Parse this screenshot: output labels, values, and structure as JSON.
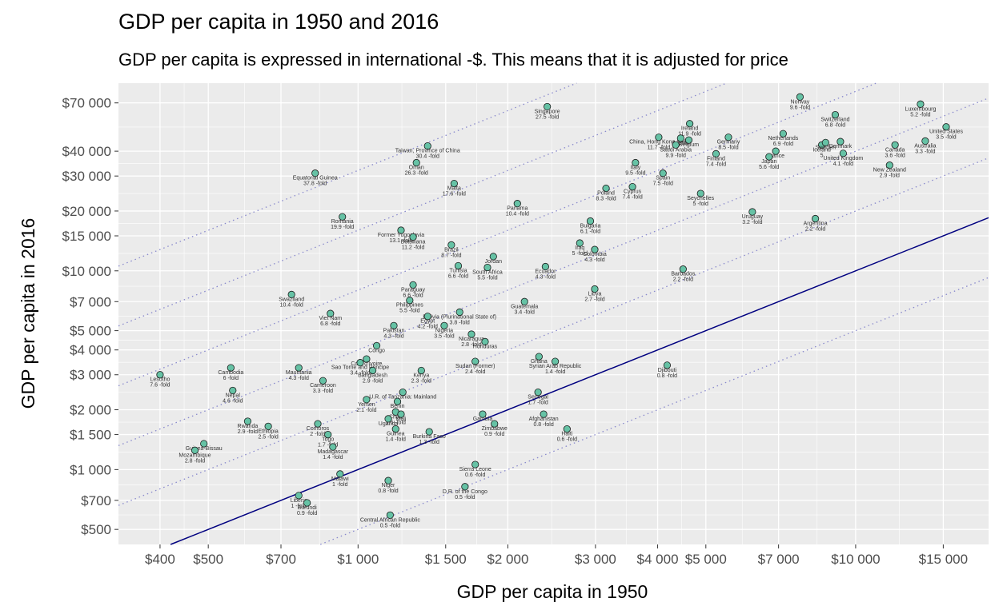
{
  "title": "GDP per capita in 1950 and 2016",
  "subtitle": "GDP per capita is expressed in international -$. This means that it is adjusted for price",
  "colors": {
    "panel": "#ebebeb",
    "grid": "#ffffff",
    "point_fill": "#66c2a5",
    "point_stroke": "#1a1a1a",
    "line": "#000080",
    "dotted": "#8888cc"
  },
  "chart_data": {
    "type": "scatter",
    "x_scale": "log",
    "y_scale": "log",
    "xlabel": "GDP per capita in 1950",
    "ylabel": "GDP per capita in 2016",
    "xlim": [
      330,
      18500
    ],
    "ylim": [
      420,
      88000
    ],
    "grid": true,
    "x_ticks": [
      {
        "value": 400,
        "label": "$400"
      },
      {
        "value": 500,
        "label": "$500"
      },
      {
        "value": 700,
        "label": "$700"
      },
      {
        "value": 1000,
        "label": "$1 000"
      },
      {
        "value": 1500,
        "label": "$1 500"
      },
      {
        "value": 2000,
        "label": "$2 000"
      },
      {
        "value": 3000,
        "label": "$3 000"
      },
      {
        "value": 4000,
        "label": "$4 000"
      },
      {
        "value": 5000,
        "label": "$5 000"
      },
      {
        "value": 7000,
        "label": "$7 000"
      },
      {
        "value": 10000,
        "label": "$10 000"
      },
      {
        "value": 15000,
        "label": "$15 000"
      }
    ],
    "y_ticks": [
      {
        "value": 500,
        "label": "$500"
      },
      {
        "value": 700,
        "label": "$700"
      },
      {
        "value": 1000,
        "label": "$1 000"
      },
      {
        "value": 1500,
        "label": "$1 500"
      },
      {
        "value": 2000,
        "label": "$2 000"
      },
      {
        "value": 3000,
        "label": "$3 000"
      },
      {
        "value": 4000,
        "label": "$4 000"
      },
      {
        "value": 5000,
        "label": "$5 000"
      },
      {
        "value": 7000,
        "label": "$7 000"
      },
      {
        "value": 10000,
        "label": "$10 000"
      },
      {
        "value": 15000,
        "label": "$15 000"
      },
      {
        "value": 20000,
        "label": "$20 000"
      },
      {
        "value": 30000,
        "label": "$30 000"
      },
      {
        "value": 40000,
        "label": "$40 000"
      },
      {
        "value": 70000,
        "label": "$70 000"
      }
    ],
    "reference_lines": [
      {
        "style": "solid",
        "multiple": 1
      },
      {
        "style": "dotted",
        "multiple": 0.5
      },
      {
        "style": "dotted",
        "multiple": 2
      },
      {
        "style": "dotted",
        "multiple": 4
      },
      {
        "style": "dotted",
        "multiple": 8
      },
      {
        "style": "dotted",
        "multiple": 16
      },
      {
        "style": "dotted",
        "multiple": 32
      }
    ],
    "points": [
      {
        "name": "Norway",
        "fold": "9.6 -fold",
        "x": 7730,
        "y": 75000
      },
      {
        "name": "Luxembourg",
        "fold": "5.2 -fold",
        "x": 13500,
        "y": 69000
      },
      {
        "name": "Singapore",
        "fold": "27.5 -fold",
        "x": 2400,
        "y": 67000
      },
      {
        "name": "Switzerland",
        "fold": "6.8 -fold",
        "x": 9100,
        "y": 61000
      },
      {
        "name": "Ireland",
        "fold": "11.9 -fold",
        "x": 4640,
        "y": 55000
      },
      {
        "name": "United States",
        "fold": "3.5 -fold",
        "x": 15200,
        "y": 53000
      },
      {
        "name": "Netherlands",
        "fold": "6.9 -fold",
        "x": 7150,
        "y": 49000
      },
      {
        "name": "Germany",
        "fold": "8.5 -fold",
        "x": 5550,
        "y": 47000
      },
      {
        "name": "China, Hong Kong SAR",
        "fold": "11.7 -fold",
        "x": 4020,
        "y": 47000
      },
      {
        "name": "Austria",
        "fold": "",
        "x": 4450,
        "y": 46500
      },
      {
        "name": "Belgium",
        "fold": "",
        "x": 4620,
        "y": 45500
      },
      {
        "name": "Australia",
        "fold": "3.3 -fold",
        "x": 13800,
        "y": 45000
      },
      {
        "name": "Denmark",
        "fold": "",
        "x": 9320,
        "y": 44700
      },
      {
        "name": "Saudi Arabia",
        "fold": "9.9 -fold",
        "x": 4350,
        "y": 43000
      },
      {
        "name": "Iceland",
        "fold": "5",
        "x": 8550,
        "y": 43000
      },
      {
        "name": "Sweden",
        "fold": "",
        "x": 8700,
        "y": 44200
      },
      {
        "name": "Canada",
        "fold": "3.6 -fold",
        "x": 12000,
        "y": 43000
      },
      {
        "name": "Taiwan, Province of China",
        "fold": "30.4 -fold",
        "x": 1380,
        "y": 42500
      },
      {
        "name": "Finland",
        "fold": "7.4 -fold",
        "x": 5240,
        "y": 38800
      },
      {
        "name": "France",
        "fold": "",
        "x": 6910,
        "y": 40000
      },
      {
        "name": "United Kingdom",
        "fold": "4.1 -fold",
        "x": 9440,
        "y": 39000
      },
      {
        "name": "Oman",
        "fold": "26.3 -fold",
        "x": 1310,
        "y": 35000
      },
      {
        "name": "Japan",
        "fold": "5.6 -fold",
        "x": 6700,
        "y": 37500
      },
      {
        "name": "Italy",
        "fold": "9.5 -fold",
        "x": 3610,
        "y": 35000
      },
      {
        "name": "New Zealand",
        "fold": "2.9 -fold",
        "x": 11700,
        "y": 34000
      },
      {
        "name": "Equatorial Guinea",
        "fold": "37.8 -fold",
        "x": 820,
        "y": 31000
      },
      {
        "name": "Spain",
        "fold": "7.5 -fold",
        "x": 4100,
        "y": 31000
      },
      {
        "name": "Malta",
        "fold": "17.6 -fold",
        "x": 1560,
        "y": 27500
      },
      {
        "name": "Poland",
        "fold": "8.3 -fold",
        "x": 3150,
        "y": 26000
      },
      {
        "name": "Cyprus",
        "fold": "7.4 -fold",
        "x": 3560,
        "y": 26500
      },
      {
        "name": "Seychelles",
        "fold": "5 -fold",
        "x": 4880,
        "y": 24500
      },
      {
        "name": "Panama",
        "fold": "10.4 -fold",
        "x": 2090,
        "y": 21800
      },
      {
        "name": "Uruguay",
        "fold": "3.2 -fold",
        "x": 6200,
        "y": 19800
      },
      {
        "name": "Romania",
        "fold": "19.9 -fold",
        "x": 930,
        "y": 18700
      },
      {
        "name": "Argentina",
        "fold": "2.2 -fold",
        "x": 8300,
        "y": 18300
      },
      {
        "name": "Bulgaria",
        "fold": "6.1 -fold",
        "x": 2930,
        "y": 17800
      },
      {
        "name": "Former Yugoslavia",
        "fold": "13.1 -fold",
        "x": 1220,
        "y": 16000
      },
      {
        "name": "Botswana",
        "fold": "11.2 -fold",
        "x": 1290,
        "y": 14800
      },
      {
        "name": "Brazil",
        "fold": "8.7 -fold",
        "x": 1540,
        "y": 13500
      },
      {
        "name": "Iraq",
        "fold": "5 -fold",
        "x": 2790,
        "y": 13800
      },
      {
        "name": "Colombia",
        "fold": "4.3 -fold",
        "x": 2990,
        "y": 12800
      },
      {
        "name": "Jordan",
        "fold": "",
        "x": 1870,
        "y": 11800
      },
      {
        "name": "Tunisia",
        "fold": "6.6 -fold",
        "x": 1590,
        "y": 10600
      },
      {
        "name": "South Africa",
        "fold": "5.5 -fold",
        "x": 1820,
        "y": 10400
      },
      {
        "name": "Ecuador",
        "fold": "4.3 -fold",
        "x": 2380,
        "y": 10500
      },
      {
        "name": "Barbados",
        "fold": "2.2 -fold",
        "x": 4500,
        "y": 10200
      },
      {
        "name": "Paraguay",
        "fold": "6.6 -fold",
        "x": 1290,
        "y": 8500
      },
      {
        "name": "Libya",
        "fold": "2.7 -fold",
        "x": 2990,
        "y": 8100
      },
      {
        "name": "Swaziland",
        "fold": "10.4 -fold",
        "x": 735,
        "y": 7600
      },
      {
        "name": "Philippines",
        "fold": "5.5 -fold",
        "x": 1270,
        "y": 7100
      },
      {
        "name": "Guatemala",
        "fold": "3.4 -fold",
        "x": 2160,
        "y": 7000
      },
      {
        "name": "Viet Nam",
        "fold": "6.8 -fold",
        "x": 880,
        "y": 6100
      },
      {
        "name": "Bolivia (Plurinational State of)",
        "fold": "3.8 -fold",
        "x": 1600,
        "y": 6200
      },
      {
        "name": "Egypt",
        "fold": "4.2 -fold",
        "x": 1380,
        "y": 5900
      },
      {
        "name": "Pakistan",
        "fold": "4.3 -fold",
        "x": 1180,
        "y": 5300
      },
      {
        "name": "Nigeria",
        "fold": "3.5 -fold",
        "x": 1490,
        "y": 5300
      },
      {
        "name": "Nicaragua",
        "fold": "2.8 -fold",
        "x": 1690,
        "y": 4800
      },
      {
        "name": "Honduras",
        "fold": "",
        "x": 1800,
        "y": 4400
      },
      {
        "name": "Congo",
        "fold": "",
        "x": 1090,
        "y": 4200
      },
      {
        "name": "Ghana",
        "fold": "",
        "x": 2310,
        "y": 3700
      },
      {
        "name": "Cote d'Ivoire",
        "fold": "",
        "x": 1040,
        "y": 3600
      },
      {
        "name": "Sudan (Former)",
        "fold": "2.4 -fold",
        "x": 1720,
        "y": 3500
      },
      {
        "name": "Syrian Arab Republic",
        "fold": "1.4 -fold",
        "x": 2490,
        "y": 3500
      },
      {
        "name": "Sao Tome and Principe",
        "fold": "3.4 -fold",
        "x": 1010,
        "y": 3450
      },
      {
        "name": "Cambodia",
        "fold": "6 -fold",
        "x": 555,
        "y": 3250
      },
      {
        "name": "Mauritania",
        "fold": "4.3 -fold",
        "x": 760,
        "y": 3250
      },
      {
        "name": "Djibouti",
        "fold": "0.8 -fold",
        "x": 4180,
        "y": 3350
      },
      {
        "name": "Bangladesh",
        "fold": "2.9 -fold",
        "x": 1070,
        "y": 3150
      },
      {
        "name": "Kenya",
        "fold": "2.3 -fold",
        "x": 1340,
        "y": 3150
      },
      {
        "name": "Lesotho",
        "fold": "7.6 -fold",
        "x": 400,
        "y": 3000
      },
      {
        "name": "Cameroon",
        "fold": "3.3 -fold",
        "x": 850,
        "y": 2800
      },
      {
        "name": "Nepal",
        "fold": "4.6 -fold",
        "x": 560,
        "y": 2500
      },
      {
        "name": "U.R. of Tanzania: Mainland",
        "fold": "",
        "x": 1230,
        "y": 2450
      },
      {
        "name": "Senegal",
        "fold": "1.7 -fold",
        "x": 2300,
        "y": 2450
      },
      {
        "name": "Yemen",
        "fold": "2.1 -fold",
        "x": 1040,
        "y": 2250
      },
      {
        "name": "Benin",
        "fold": "",
        "x": 1200,
        "y": 2200
      },
      {
        "name": "Chad",
        "fold": "1.6 -fold",
        "x": 1190,
        "y": 1950
      },
      {
        "name": "Gambia",
        "fold": "",
        "x": 1780,
        "y": 1900
      },
      {
        "name": "Afghanistan",
        "fold": "0.8 -fold",
        "x": 2360,
        "y": 1900
      },
      {
        "name": "Mali",
        "fold": "",
        "x": 1220,
        "y": 1900
      },
      {
        "name": "Uganda",
        "fold": "",
        "x": 1150,
        "y": 1800
      },
      {
        "name": "Rwanda",
        "fold": "2.9 -fold",
        "x": 600,
        "y": 1750
      },
      {
        "name": "Comoros",
        "fold": "2 -fold",
        "x": 830,
        "y": 1700
      },
      {
        "name": "Zimbabwe",
        "fold": "0.9 -fold",
        "x": 1880,
        "y": 1700
      },
      {
        "name": "Ethiopia",
        "fold": "2.5 -fold",
        "x": 660,
        "y": 1650
      },
      {
        "name": "Haiti",
        "fold": "0.6 -fold",
        "x": 2630,
        "y": 1600
      },
      {
        "name": "Guinea",
        "fold": "1.4 -fold",
        "x": 1190,
        "y": 1600
      },
      {
        "name": "Burkina Faso",
        "fold": "1.3 -fold",
        "x": 1390,
        "y": 1550
      },
      {
        "name": "Togo",
        "fold": "1.7 -fold",
        "x": 870,
        "y": 1500
      },
      {
        "name": "Guinea-Bissau",
        "fold": "",
        "x": 490,
        "y": 1350
      },
      {
        "name": "Madagascar",
        "fold": "1.4 -fold",
        "x": 890,
        "y": 1300
      },
      {
        "name": "Mozambique",
        "fold": "2.8 -fold",
        "x": 470,
        "y": 1250
      },
      {
        "name": "Sierra Leone",
        "fold": "0.6 -fold",
        "x": 1720,
        "y": 1060
      },
      {
        "name": "Malawi",
        "fold": "1 -fold",
        "x": 920,
        "y": 950
      },
      {
        "name": "Niger",
        "fold": "0.8 -fold",
        "x": 1150,
        "y": 880
      },
      {
        "name": "D.R. of the Congo",
        "fold": "0.5 -fold",
        "x": 1640,
        "y": 820
      },
      {
        "name": "Liberia",
        "fold": "1 -fold",
        "x": 760,
        "y": 740
      },
      {
        "name": "Burundi",
        "fold": "0.9 -fold",
        "x": 790,
        "y": 680
      },
      {
        "name": "Central African Republic",
        "fold": "0.5 -fold",
        "x": 1160,
        "y": 590
      }
    ]
  }
}
